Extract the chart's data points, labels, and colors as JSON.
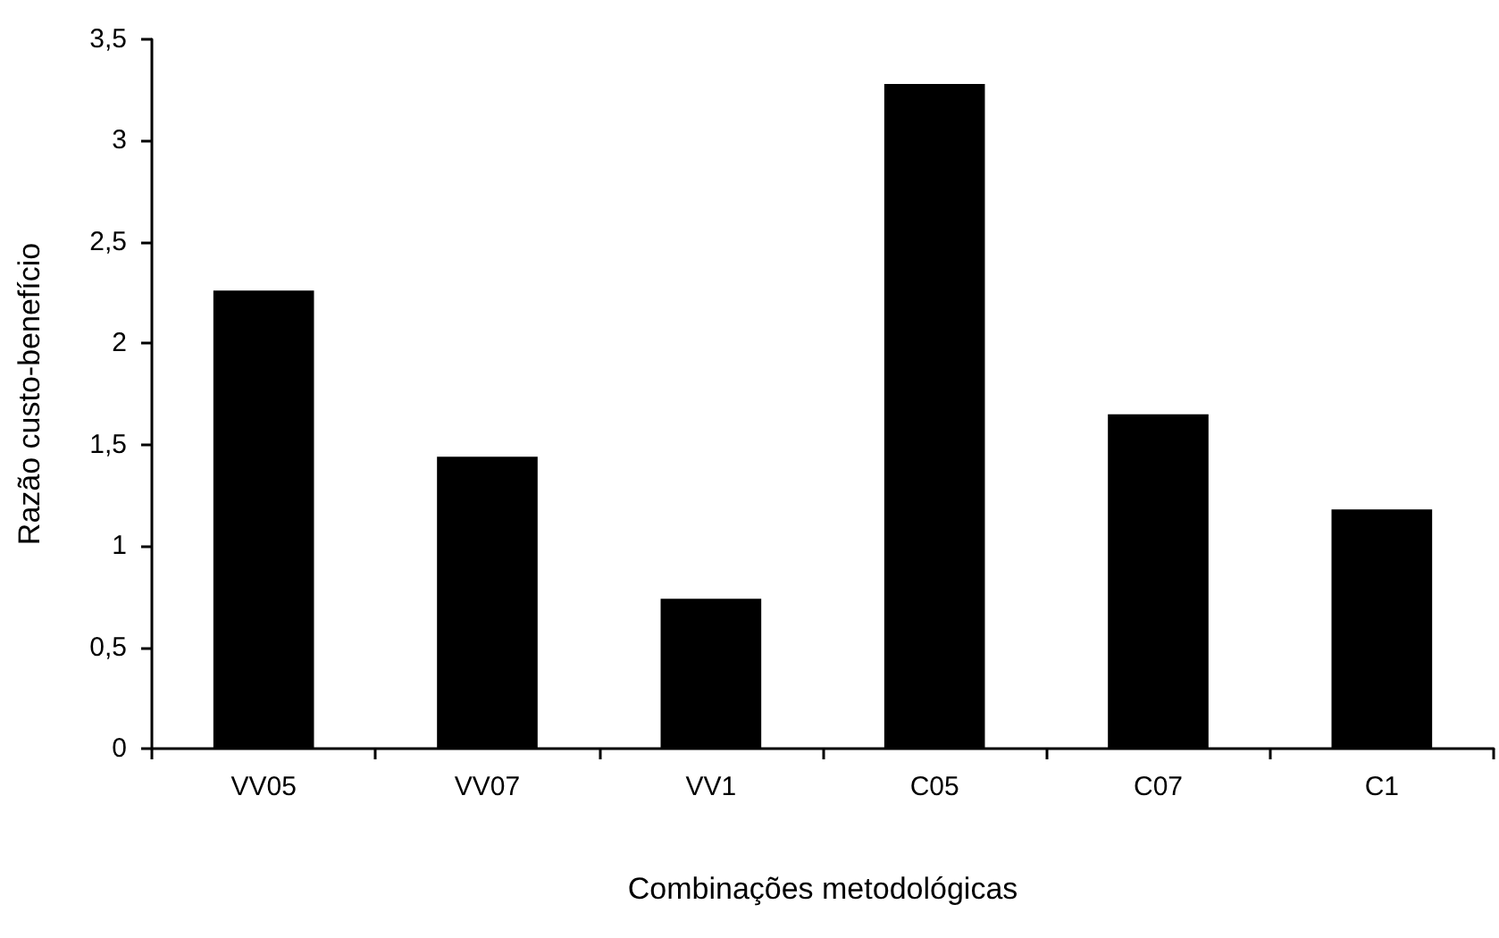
{
  "chart_data": {
    "type": "bar",
    "xlabel": "Combinações metodológicas",
    "ylabel": "Razão custo-benefício",
    "categories": [
      "VV05",
      "VV07",
      "VV1",
      "C05",
      "C07",
      "C1"
    ],
    "values": [
      2.26,
      1.44,
      0.74,
      3.28,
      1.65,
      1.18
    ],
    "color": "#000000",
    "ylim": [
      0,
      3.5
    ],
    "yticks": [
      {
        "value": 0,
        "label": "0"
      },
      {
        "value": 0.5,
        "label": "0,5"
      },
      {
        "value": 1,
        "label": "1"
      },
      {
        "value": 1.5,
        "label": "1,5"
      },
      {
        "value": 2,
        "label": "2"
      },
      {
        "value": 2.5,
        "label": "2,5"
      },
      {
        "value": 3,
        "label": "3"
      },
      {
        "value": 3.5,
        "label": "3,5"
      }
    ],
    "grid": false
  }
}
